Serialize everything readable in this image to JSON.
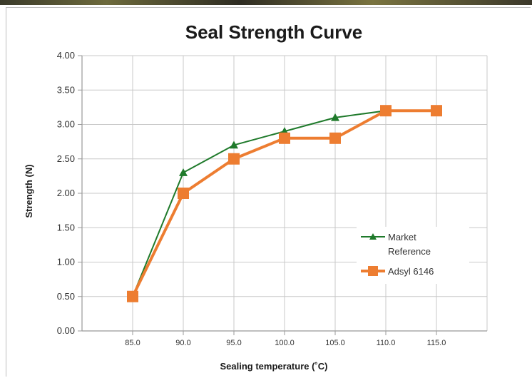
{
  "chart_data": {
    "type": "line",
    "title": "Seal Strength Curve",
    "xlabel": "Sealing temperature (˚C)",
    "ylabel": "Strength (N)",
    "categories": [
      "85.0",
      "90.0",
      "95.0",
      "100.0",
      "105.0",
      "110.0",
      "115.0"
    ],
    "x": [
      85,
      90,
      95,
      100,
      105,
      110,
      115
    ],
    "ylim": [
      0,
      4
    ],
    "yticks": [
      "0.00",
      "0.50",
      "1.00",
      "1.50",
      "2.00",
      "2.50",
      "3.00",
      "3.50",
      "4.00"
    ],
    "grid": true,
    "legend_position": "right",
    "series": [
      {
        "name": "Market Reference",
        "legend_lines": [
          "Market",
          "Reference"
        ],
        "marker": "triangle",
        "color": "#1f7a2b",
        "x": [
          85,
          90,
          95,
          100,
          105,
          110
        ],
        "values": [
          0.5,
          2.3,
          2.7,
          2.9,
          3.1,
          3.2
        ]
      },
      {
        "name": "Adsyl 6146",
        "legend_lines": [
          "Adsyl 6146"
        ],
        "marker": "square",
        "color": "#ed7d31",
        "x": [
          85,
          90,
          95,
          100,
          105,
          110,
          115
        ],
        "values": [
          0.5,
          2.0,
          2.5,
          2.8,
          2.8,
          3.2,
          3.2
        ]
      }
    ]
  }
}
